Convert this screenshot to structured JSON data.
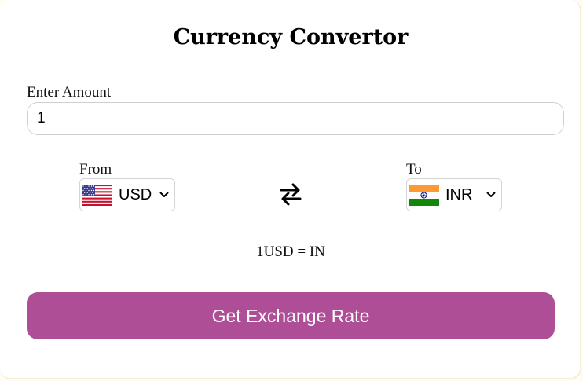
{
  "app": {
    "title": "Currency Convertor"
  },
  "amount": {
    "label": "Enter Amount",
    "value": "1"
  },
  "from": {
    "label": "From",
    "selected": "USD",
    "flag_icon": "us-flag-icon"
  },
  "to": {
    "label": "To",
    "selected": "INR",
    "flag_icon": "india-flag-icon"
  },
  "swap": {
    "icon": "swap-arrows-icon"
  },
  "result": {
    "text": "1USD = IN"
  },
  "action": {
    "button_label": "Get Exchange Rate"
  },
  "colors": {
    "accent": "#ad4e96",
    "page_background": "#fffdf3",
    "card_background": "#ffffff"
  }
}
